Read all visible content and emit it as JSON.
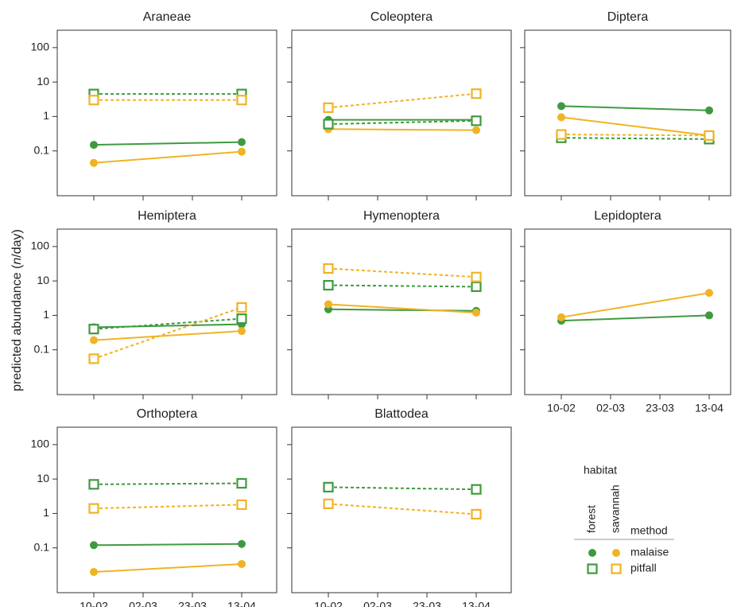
{
  "ylabel": [
    "predicted abundance (",
    "n",
    "/day)"
  ],
  "legend": {
    "title": "habitat",
    "habitats": [
      "forest",
      "savannah"
    ],
    "method_title": "method",
    "methods": [
      "malaise",
      "pitfall"
    ]
  },
  "chart_data": [
    {
      "type": "line",
      "title": "Araneae",
      "log_y": true,
      "ylim": [
        0.005,
        320
      ],
      "yticks": [
        0.1,
        1,
        10,
        100
      ],
      "xticks": [
        "10-02",
        "02-03",
        "23-03",
        "13-04"
      ],
      "x": [
        "10-02",
        "13-04"
      ],
      "series": [
        {
          "habitat": "forest",
          "method": "malaise",
          "color": "#3f9a3f",
          "marker": "circle",
          "dash": false,
          "values": [
            0.15,
            0.18
          ]
        },
        {
          "habitat": "savannah",
          "method": "malaise",
          "color": "#f0b323",
          "marker": "circle",
          "dash": false,
          "values": [
            0.045,
            0.095
          ]
        },
        {
          "habitat": "forest",
          "method": "pitfall",
          "color": "#3f9a3f",
          "marker": "square",
          "dash": true,
          "values": [
            4.5,
            4.5
          ]
        },
        {
          "habitat": "savannah",
          "method": "pitfall",
          "color": "#f0b323",
          "marker": "square",
          "dash": true,
          "values": [
            3,
            3
          ]
        }
      ]
    },
    {
      "type": "line",
      "title": "Coleoptera",
      "log_y": true,
      "ylim": [
        0.005,
        320
      ],
      "yticks": [
        0.1,
        1,
        10,
        100
      ],
      "xticks": [
        "10-02",
        "02-03",
        "23-03",
        "13-04"
      ],
      "x": [
        "10-02",
        "13-04"
      ],
      "series": [
        {
          "habitat": "forest",
          "method": "malaise",
          "color": "#3f9a3f",
          "marker": "circle",
          "dash": false,
          "values": [
            0.8,
            0.8
          ]
        },
        {
          "habitat": "savannah",
          "method": "malaise",
          "color": "#f0b323",
          "marker": "circle",
          "dash": false,
          "values": [
            0.43,
            0.4
          ]
        },
        {
          "habitat": "forest",
          "method": "pitfall",
          "color": "#3f9a3f",
          "marker": "square",
          "dash": true,
          "values": [
            0.6,
            0.75
          ]
        },
        {
          "habitat": "savannah",
          "method": "pitfall",
          "color": "#f0b323",
          "marker": "square",
          "dash": true,
          "values": [
            1.8,
            4.6
          ]
        }
      ]
    },
    {
      "type": "line",
      "title": "Diptera",
      "log_y": true,
      "ylim": [
        0.005,
        320
      ],
      "yticks": [
        0.1,
        1,
        10,
        100
      ],
      "xticks": [
        "10-02",
        "02-03",
        "23-03",
        "13-04"
      ],
      "x": [
        "10-02",
        "13-04"
      ],
      "series": [
        {
          "habitat": "forest",
          "method": "malaise",
          "color": "#3f9a3f",
          "marker": "circle",
          "dash": false,
          "values": [
            2,
            1.5
          ]
        },
        {
          "habitat": "savannah",
          "method": "malaise",
          "color": "#f0b323",
          "marker": "circle",
          "dash": false,
          "values": [
            0.95,
            0.28
          ]
        },
        {
          "habitat": "forest",
          "method": "pitfall",
          "color": "#3f9a3f",
          "marker": "square",
          "dash": true,
          "values": [
            0.24,
            0.22
          ]
        },
        {
          "habitat": "savannah",
          "method": "pitfall",
          "color": "#f0b323",
          "marker": "square",
          "dash": true,
          "values": [
            0.3,
            0.28
          ]
        }
      ]
    },
    {
      "type": "line",
      "title": "Hemiptera",
      "log_y": true,
      "ylim": [
        0.005,
        320
      ],
      "yticks": [
        0.1,
        1,
        10,
        100
      ],
      "xticks": [
        "10-02",
        "02-03",
        "23-03",
        "13-04"
      ],
      "x": [
        "10-02",
        "13-04"
      ],
      "series": [
        {
          "habitat": "forest",
          "method": "malaise",
          "color": "#3f9a3f",
          "marker": "circle",
          "dash": false,
          "values": [
            0.45,
            0.55
          ]
        },
        {
          "habitat": "savannah",
          "method": "malaise",
          "color": "#f0b323",
          "marker": "circle",
          "dash": false,
          "values": [
            0.19,
            0.35
          ]
        },
        {
          "habitat": "forest",
          "method": "pitfall",
          "color": "#3f9a3f",
          "marker": "square",
          "dash": true,
          "values": [
            0.4,
            0.8
          ]
        },
        {
          "habitat": "savannah",
          "method": "pitfall",
          "color": "#f0b323",
          "marker": "square",
          "dash": true,
          "values": [
            0.055,
            1.7
          ]
        }
      ]
    },
    {
      "type": "line",
      "title": "Hymenoptera",
      "log_y": true,
      "ylim": [
        0.005,
        320
      ],
      "yticks": [
        0.1,
        1,
        10,
        100
      ],
      "xticks": [
        "10-02",
        "02-03",
        "23-03",
        "13-04"
      ],
      "x": [
        "10-02",
        "13-04"
      ],
      "series": [
        {
          "habitat": "forest",
          "method": "malaise",
          "color": "#3f9a3f",
          "marker": "circle",
          "dash": false,
          "values": [
            1.5,
            1.35
          ]
        },
        {
          "habitat": "savannah",
          "method": "malaise",
          "color": "#f0b323",
          "marker": "circle",
          "dash": false,
          "values": [
            2.1,
            1.2
          ]
        },
        {
          "habitat": "forest",
          "method": "pitfall",
          "color": "#3f9a3f",
          "marker": "square",
          "dash": true,
          "values": [
            7.5,
            6.8
          ]
        },
        {
          "habitat": "savannah",
          "method": "pitfall",
          "color": "#f0b323",
          "marker": "square",
          "dash": true,
          "values": [
            23,
            13
          ]
        }
      ]
    },
    {
      "type": "line",
      "title": "Lepidoptera",
      "log_y": true,
      "ylim": [
        0.005,
        320
      ],
      "yticks": [
        0.1,
        1,
        10,
        100
      ],
      "xticks": [
        "10-02",
        "02-03",
        "23-03",
        "13-04"
      ],
      "x": [
        "10-02",
        "13-04"
      ],
      "series": [
        {
          "habitat": "forest",
          "method": "malaise",
          "color": "#3f9a3f",
          "marker": "circle",
          "dash": false,
          "values": [
            0.7,
            1.0
          ]
        },
        {
          "habitat": "savannah",
          "method": "malaise",
          "color": "#f0b323",
          "marker": "circle",
          "dash": false,
          "values": [
            0.88,
            4.5
          ]
        }
      ]
    },
    {
      "type": "line",
      "title": "Orthoptera",
      "log_y": true,
      "ylim": [
        0.005,
        320
      ],
      "yticks": [
        0.1,
        1,
        10,
        100
      ],
      "xticks": [
        "10-02",
        "02-03",
        "23-03",
        "13-04"
      ],
      "x": [
        "10-02",
        "13-04"
      ],
      "series": [
        {
          "habitat": "forest",
          "method": "malaise",
          "color": "#3f9a3f",
          "marker": "circle",
          "dash": false,
          "values": [
            0.12,
            0.13
          ]
        },
        {
          "habitat": "savannah",
          "method": "malaise",
          "color": "#f0b323",
          "marker": "circle",
          "dash": false,
          "values": [
            0.02,
            0.034
          ]
        },
        {
          "habitat": "forest",
          "method": "pitfall",
          "color": "#3f9a3f",
          "marker": "square",
          "dash": true,
          "values": [
            7,
            7.5
          ]
        },
        {
          "habitat": "savannah",
          "method": "pitfall",
          "color": "#f0b323",
          "marker": "square",
          "dash": true,
          "values": [
            1.4,
            1.8
          ]
        }
      ]
    },
    {
      "type": "line",
      "title": "Blattodea",
      "log_y": true,
      "ylim": [
        0.005,
        320
      ],
      "yticks": [
        0.1,
        1,
        10,
        100
      ],
      "xticks": [
        "10-02",
        "02-03",
        "23-03",
        "13-04"
      ],
      "x": [
        "10-02",
        "13-04"
      ],
      "series": [
        {
          "habitat": "forest",
          "method": "pitfall",
          "color": "#3f9a3f",
          "marker": "square",
          "dash": true,
          "values": [
            5.8,
            5
          ]
        },
        {
          "habitat": "savannah",
          "method": "pitfall",
          "color": "#f0b323",
          "marker": "square",
          "dash": true,
          "values": [
            1.9,
            0.95
          ]
        }
      ]
    }
  ]
}
